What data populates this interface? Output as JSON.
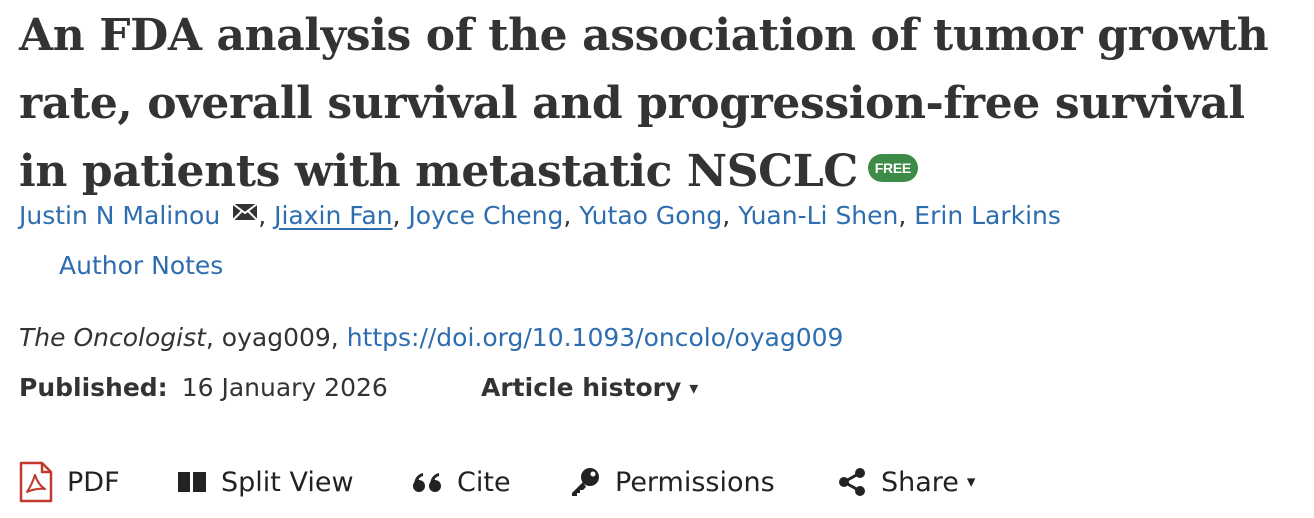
{
  "article": {
    "title": "An FDA analysis of the association of tumor growth rate, overall survival and progression-free survival in patients with metastatic NSCLC",
    "free_badge": "FREE"
  },
  "authors": [
    {
      "name": "Justin N Malinou",
      "corresponding": true
    },
    {
      "name": "Jiaxin Fan"
    },
    {
      "name": "Joyce Cheng"
    },
    {
      "name": "Yutao Gong"
    },
    {
      "name": "Yuan-Li Shen"
    },
    {
      "name": "Erin Larkins"
    }
  ],
  "separators": {
    "comma": ", "
  },
  "author_notes_label": "Author Notes",
  "citation": {
    "journal": "The Oncologist",
    "article_id": ", oyag009, ",
    "doi_url": "https://doi.org/10.1093/oncolo/oyag009"
  },
  "published": {
    "label": "Published:",
    "date": "16 January 2026",
    "history_label": "Article history",
    "history_caret": "▾"
  },
  "toolbar": {
    "pdf_label": "PDF",
    "split_view_label": "Split View",
    "cite_label": "Cite",
    "permissions_label": "Permissions",
    "share_label": "Share",
    "share_caret": "▾"
  },
  "colors": {
    "link": "#2d6db0",
    "free_badge": "#3e8a47",
    "pdf_icon": "#c0392b",
    "text": "#333333"
  },
  "icons": {
    "mail": "mail-icon",
    "pdf": "pdf-icon",
    "split_view": "split-view-icon",
    "cite": "quote-icon",
    "permissions": "key-icon",
    "share": "share-icon"
  }
}
